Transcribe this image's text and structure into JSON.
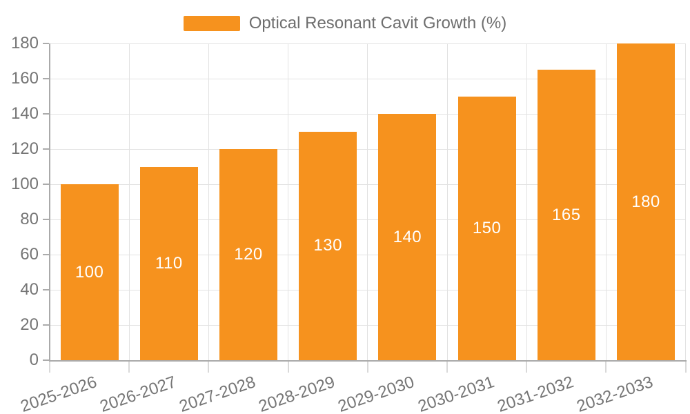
{
  "legend": {
    "series_label": "Optical Resonant Cavit Growth (%)"
  },
  "chart_data": {
    "type": "bar",
    "title": "Optical Resonant Cavit Growth (%)",
    "categories": [
      "2025-2026",
      "2026-2027",
      "2027-2028",
      "2028-2029",
      "2029-2030",
      "2030-2031",
      "2031-2032",
      "2032-2033"
    ],
    "values": [
      100,
      110,
      120,
      130,
      140,
      150,
      165,
      180
    ],
    "xlabel": "",
    "ylabel": "",
    "ylim": [
      0,
      180
    ],
    "yticks": [
      0,
      20,
      40,
      60,
      80,
      100,
      120,
      140,
      160,
      180
    ],
    "grid": "both",
    "legend_position": "top-center",
    "value_labels_position": "inside-center",
    "colors": {
      "bar": "#F6921E",
      "value_label": "#FFFFFF",
      "axis_text": "#757575",
      "grid_line": "#E2E2E2",
      "axis_line": "#AAAAAA",
      "x_tick": "#D9D9D9",
      "y_tick": "#ABABAB",
      "legend_text": "#6E6E6E"
    }
  }
}
